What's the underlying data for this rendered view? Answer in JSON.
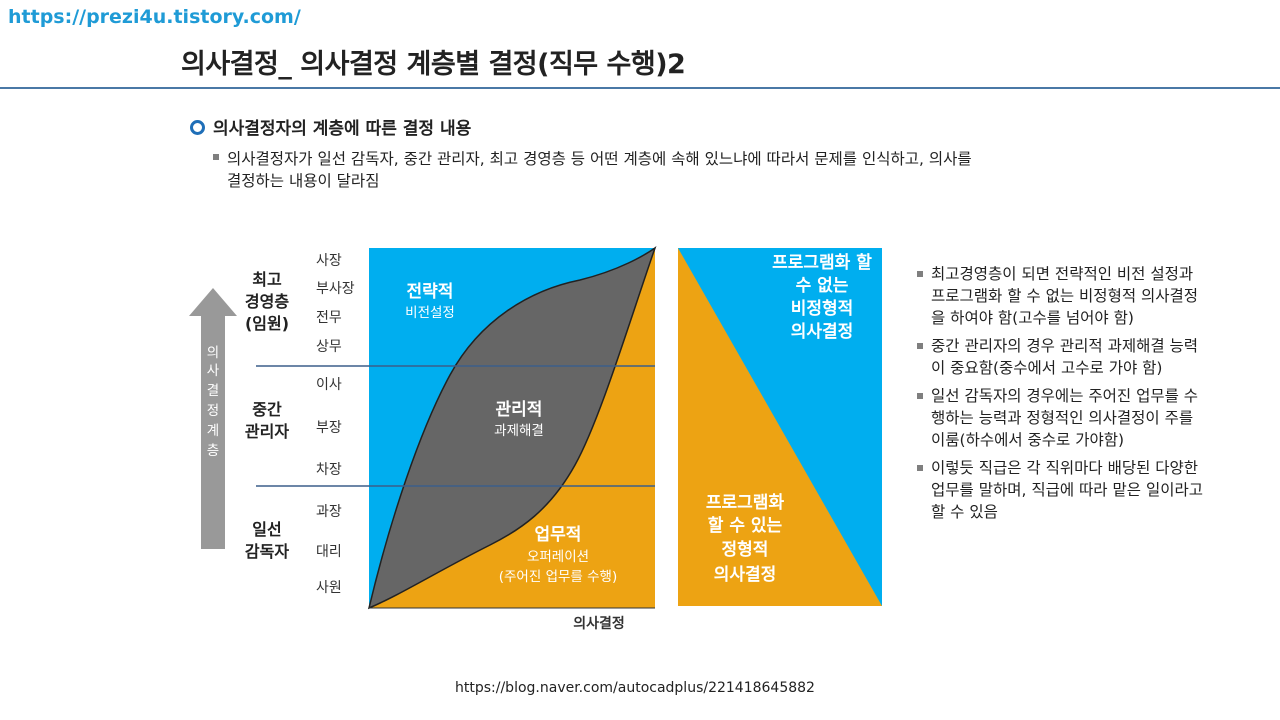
{
  "site_url": "https://prezi4u.tistory.com/",
  "page_title": "의사결정_ 의사결정 계층별 결정(직무 수행)2",
  "section": {
    "heading": "의사결정자의 계층에 따른 결정 내용",
    "desc_line1": "의사결정자가 일선 감독자, 중간 관리자, 최고 경영층 등 어떤 계층에 속해 있느냐에 따라서 문제를 인식하고, 의사를",
    "desc_line2": "결정하는 내용이 달라짐"
  },
  "diagram": {
    "axis_arrow_label": [
      "의",
      "사",
      "결",
      "정",
      "계",
      "층"
    ],
    "layers": {
      "top": [
        "최고",
        "경영층",
        "(임원)"
      ],
      "middle": [
        "중간",
        "관리자"
      ],
      "front": [
        "일선",
        "감독자"
      ]
    },
    "ranks": [
      "사장",
      "부사장",
      "전무",
      "상무",
      "이사",
      "부장",
      "차장",
      "과장",
      "대리",
      "사원"
    ],
    "regions": {
      "strategic": {
        "title": "전략적",
        "sub": "비전설정"
      },
      "managerial": {
        "title": "관리적",
        "sub": "과제해결"
      },
      "operational": {
        "title": "업무적",
        "sub1": "오퍼레이션",
        "sub2": "(주어진 업무를 수행)"
      }
    },
    "x_label": "의사결정",
    "right_panel": {
      "unstructured": [
        "프로그램화 할",
        "수 없는",
        "비정형적",
        "의사결정"
      ],
      "structured": [
        "프로그램화",
        "할 수 있는",
        "정형적",
        "의사결정"
      ]
    },
    "colors": {
      "blue": "#00aeef",
      "orange": "#eda313",
      "gray": "#666666",
      "arrow": "#999999",
      "divider": "#3b5f8a"
    }
  },
  "bullets": [
    "최고경영층이 되면 전략적인 비전 설정과 프로그램화 할 수 없는 비정형적 의사결정을 하여야 함(고수를 넘어야 함)",
    "중간 관리자의 경우 관리적 과제해결 능력이 중요함(중수에서 고수로 가야 함)",
    "일선 감독자의 경우에는 주어진 업무를 수행하는 능력과 정형적인 의사결정이 주를 이룸(하수에서 중수로 가야함)",
    "이렇듯 직급은 각 직위마다 배당된 다양한 업무를 말하며, 직급에 따라 맡은 일이라고 할 수 있음"
  ],
  "source_url": "https://blog.naver.com/autocadplus/221418645882"
}
